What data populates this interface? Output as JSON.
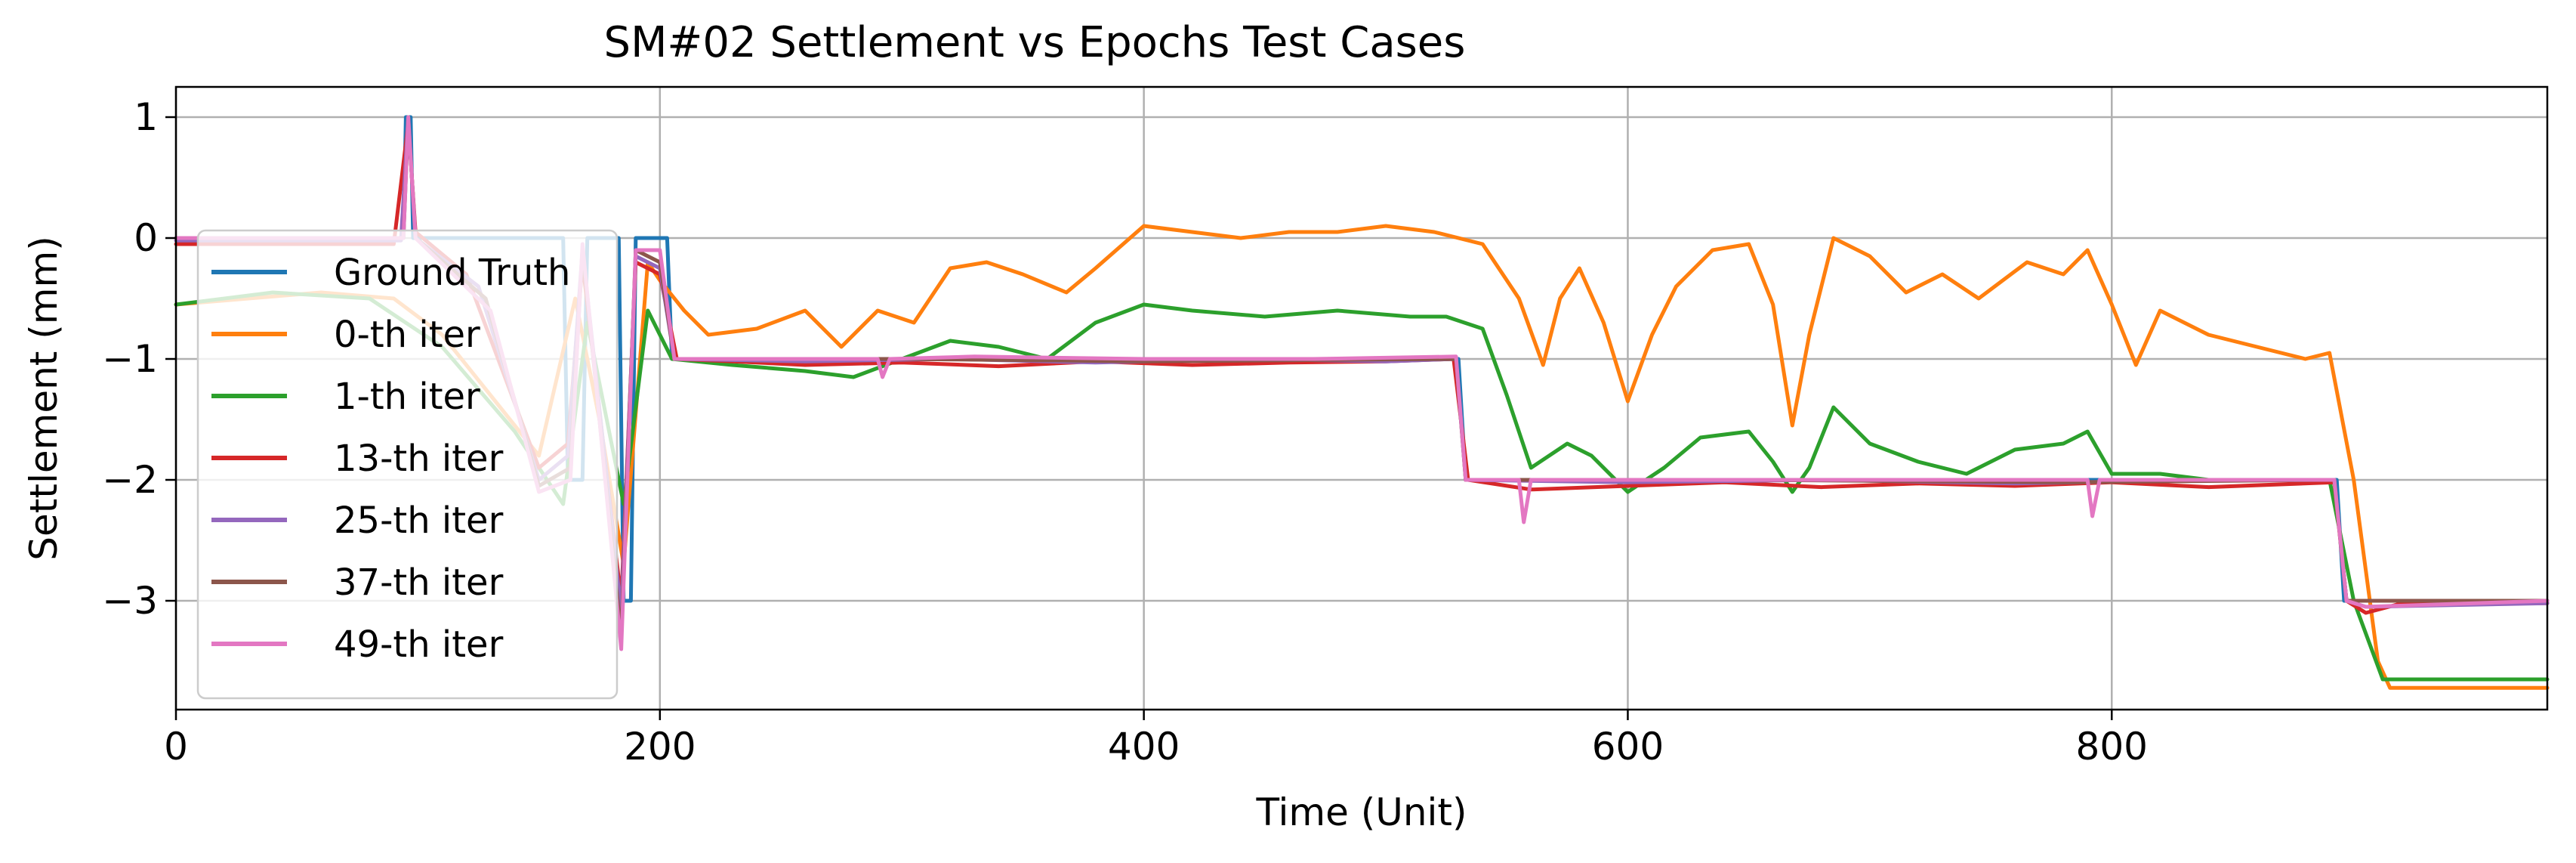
{
  "chart_data": {
    "type": "line",
    "title": "SM#02 Settlement vs Epochs Test Cases",
    "xlabel": "Time (Unit)",
    "ylabel": "Settlement (mm)",
    "xlim": [
      0,
      980
    ],
    "ylim": [
      -3.9,
      1.25
    ],
    "xticks": [
      0,
      200,
      400,
      600,
      800
    ],
    "xtick_labels": [
      "0",
      "200",
      "400",
      "600",
      "800"
    ],
    "yticks": [
      1,
      0,
      -1,
      -2,
      -3
    ],
    "ytick_labels": [
      "1",
      "0",
      "−1",
      "−2",
      "−3"
    ],
    "grid": true,
    "legend_position": "upper left",
    "series": [
      {
        "name": "Ground Truth",
        "color": "#1f77b4",
        "points": [
          [
            0,
            0
          ],
          [
            94,
            0
          ],
          [
            95,
            1
          ],
          [
            97,
            1
          ],
          [
            98,
            0
          ],
          [
            160,
            0
          ],
          [
            162,
            -2
          ],
          [
            168,
            -2
          ],
          [
            170,
            0
          ],
          [
            183,
            0
          ],
          [
            185,
            -3
          ],
          [
            188,
            -3
          ],
          [
            190,
            0
          ],
          [
            203,
            0
          ],
          [
            205,
            -1
          ],
          [
            530,
            -1
          ],
          [
            533,
            -2
          ],
          [
            893,
            -2
          ],
          [
            896,
            -3
          ],
          [
            980,
            -3
          ]
        ]
      },
      {
        "name": "0-th iter",
        "color": "#ff7f0e",
        "points": [
          [
            0,
            -0.55
          ],
          [
            30,
            -0.5
          ],
          [
            60,
            -0.45
          ],
          [
            90,
            -0.5
          ],
          [
            110,
            -0.8
          ],
          [
            130,
            -1.3
          ],
          [
            150,
            -1.8
          ],
          [
            165,
            -0.5
          ],
          [
            175,
            -1.5
          ],
          [
            185,
            -2.7
          ],
          [
            195,
            -0.2
          ],
          [
            200,
            -0.35
          ],
          [
            210,
            -0.6
          ],
          [
            220,
            -0.8
          ],
          [
            240,
            -0.75
          ],
          [
            260,
            -0.6
          ],
          [
            275,
            -0.9
          ],
          [
            290,
            -0.6
          ],
          [
            305,
            -0.7
          ],
          [
            320,
            -0.25
          ],
          [
            335,
            -0.2
          ],
          [
            350,
            -0.3
          ],
          [
            368,
            -0.45
          ],
          [
            380,
            -0.25
          ],
          [
            400,
            0.1
          ],
          [
            420,
            0.05
          ],
          [
            440,
            0
          ],
          [
            460,
            0.05
          ],
          [
            480,
            0.05
          ],
          [
            500,
            0.1
          ],
          [
            520,
            0.05
          ],
          [
            540,
            -0.05
          ],
          [
            555,
            -0.5
          ],
          [
            565,
            -1.05
          ],
          [
            572,
            -0.5
          ],
          [
            580,
            -0.25
          ],
          [
            590,
            -0.7
          ],
          [
            600,
            -1.35
          ],
          [
            610,
            -0.8
          ],
          [
            620,
            -0.4
          ],
          [
            635,
            -0.1
          ],
          [
            650,
            -0.05
          ],
          [
            660,
            -0.55
          ],
          [
            668,
            -1.55
          ],
          [
            675,
            -0.8
          ],
          [
            685,
            0
          ],
          [
            700,
            -0.15
          ],
          [
            715,
            -0.45
          ],
          [
            730,
            -0.3
          ],
          [
            745,
            -0.5
          ],
          [
            765,
            -0.2
          ],
          [
            780,
            -0.3
          ],
          [
            790,
            -0.1
          ],
          [
            800,
            -0.55
          ],
          [
            810,
            -1.05
          ],
          [
            820,
            -0.6
          ],
          [
            840,
            -0.8
          ],
          [
            860,
            -0.9
          ],
          [
            880,
            -1.0
          ],
          [
            890,
            -0.95
          ],
          [
            900,
            -2.0
          ],
          [
            910,
            -3.5
          ],
          [
            915,
            -3.72
          ],
          [
            980,
            -3.72
          ]
        ]
      },
      {
        "name": "1-th iter",
        "color": "#2ca02c",
        "points": [
          [
            0,
            -0.55
          ],
          [
            40,
            -0.45
          ],
          [
            80,
            -0.5
          ],
          [
            110,
            -0.9
          ],
          [
            140,
            -1.6
          ],
          [
            160,
            -2.2
          ],
          [
            170,
            -0.7
          ],
          [
            185,
            -2.2
          ],
          [
            195,
            -0.6
          ],
          [
            205,
            -1.0
          ],
          [
            230,
            -1.05
          ],
          [
            260,
            -1.1
          ],
          [
            280,
            -1.15
          ],
          [
            300,
            -1.0
          ],
          [
            320,
            -0.85
          ],
          [
            340,
            -0.9
          ],
          [
            360,
            -1.0
          ],
          [
            380,
            -0.7
          ],
          [
            400,
            -0.55
          ],
          [
            420,
            -0.6
          ],
          [
            450,
            -0.65
          ],
          [
            480,
            -0.6
          ],
          [
            510,
            -0.65
          ],
          [
            525,
            -0.65
          ],
          [
            540,
            -0.75
          ],
          [
            550,
            -1.3
          ],
          [
            560,
            -1.9
          ],
          [
            575,
            -1.7
          ],
          [
            585,
            -1.8
          ],
          [
            600,
            -2.1
          ],
          [
            615,
            -1.9
          ],
          [
            630,
            -1.65
          ],
          [
            650,
            -1.6
          ],
          [
            660,
            -1.85
          ],
          [
            668,
            -2.1
          ],
          [
            675,
            -1.9
          ],
          [
            685,
            -1.4
          ],
          [
            700,
            -1.7
          ],
          [
            720,
            -1.85
          ],
          [
            740,
            -1.95
          ],
          [
            760,
            -1.75
          ],
          [
            780,
            -1.7
          ],
          [
            790,
            -1.6
          ],
          [
            800,
            -1.95
          ],
          [
            820,
            -1.95
          ],
          [
            840,
            -2.0
          ],
          [
            890,
            -2.0
          ],
          [
            900,
            -3.0
          ],
          [
            912,
            -3.65
          ],
          [
            980,
            -3.65
          ]
        ]
      },
      {
        "name": "13-th iter",
        "color": "#d62728",
        "points": [
          [
            0,
            -0.05
          ],
          [
            90,
            -0.05
          ],
          [
            96,
            0.95
          ],
          [
            99,
            0.05
          ],
          [
            120,
            -0.3
          ],
          [
            150,
            -1.9
          ],
          [
            162,
            -1.7
          ],
          [
            168,
            -0.2
          ],
          [
            184,
            -3.0
          ],
          [
            190,
            -0.2
          ],
          [
            200,
            -0.3
          ],
          [
            207,
            -1.0
          ],
          [
            230,
            -1.02
          ],
          [
            260,
            -1.05
          ],
          [
            300,
            -1.03
          ],
          [
            340,
            -1.06
          ],
          [
            380,
            -1.02
          ],
          [
            420,
            -1.05
          ],
          [
            460,
            -1.03
          ],
          [
            500,
            -1.02
          ],
          [
            528,
            -1.0
          ],
          [
            534,
            -2.0
          ],
          [
            560,
            -2.08
          ],
          [
            600,
            -2.05
          ],
          [
            640,
            -2.02
          ],
          [
            680,
            -2.06
          ],
          [
            720,
            -2.03
          ],
          [
            760,
            -2.05
          ],
          [
            800,
            -2.02
          ],
          [
            840,
            -2.06
          ],
          [
            892,
            -2.02
          ],
          [
            897,
            -3.0
          ],
          [
            905,
            -3.1
          ],
          [
            920,
            -3.02
          ],
          [
            980,
            -3.02
          ]
        ]
      },
      {
        "name": "25-th iter",
        "color": "#9467bd",
        "points": [
          [
            0,
            -0.02
          ],
          [
            93,
            -0.02
          ],
          [
            96,
            1.0
          ],
          [
            99,
            0.0
          ],
          [
            125,
            -0.4
          ],
          [
            150,
            -2.0
          ],
          [
            162,
            -1.8
          ],
          [
            168,
            -0.1
          ],
          [
            184,
            -3.1
          ],
          [
            190,
            -0.15
          ],
          [
            200,
            -0.25
          ],
          [
            206,
            -1.0
          ],
          [
            260,
            -1.02
          ],
          [
            320,
            -1.0
          ],
          [
            380,
            -1.03
          ],
          [
            440,
            -1.0
          ],
          [
            500,
            -1.02
          ],
          [
            529,
            -1.0
          ],
          [
            533,
            -2.0
          ],
          [
            600,
            -2.02
          ],
          [
            680,
            -2.0
          ],
          [
            760,
            -2.03
          ],
          [
            840,
            -2.0
          ],
          [
            892,
            -2.0
          ],
          [
            897,
            -3.0
          ],
          [
            905,
            -3.05
          ],
          [
            980,
            -3.02
          ]
        ]
      },
      {
        "name": "37-th iter",
        "color": "#8c564b",
        "points": [
          [
            0,
            0
          ],
          [
            94,
            0
          ],
          [
            96,
            1.0
          ],
          [
            99,
            0.0
          ],
          [
            128,
            -0.5
          ],
          [
            150,
            -2.05
          ],
          [
            163,
            -1.9
          ],
          [
            168,
            -0.1
          ],
          [
            184,
            -3.3
          ],
          [
            190,
            -0.1
          ],
          [
            200,
            -0.2
          ],
          [
            206,
            -1.0
          ],
          [
            300,
            -1.0
          ],
          [
            400,
            -1.02
          ],
          [
            529,
            -1.0
          ],
          [
            533,
            -2.0
          ],
          [
            650,
            -2.0
          ],
          [
            780,
            -2.02
          ],
          [
            892,
            -2.0
          ],
          [
            897,
            -3.0
          ],
          [
            980,
            -3.0
          ]
        ]
      },
      {
        "name": "49-th iter",
        "color": "#e377c2",
        "points": [
          [
            0,
            0
          ],
          [
            94,
            0
          ],
          [
            96,
            1.0
          ],
          [
            99,
            0.0
          ],
          [
            130,
            -0.6
          ],
          [
            150,
            -2.1
          ],
          [
            163,
            -2.0
          ],
          [
            168,
            -0.05
          ],
          [
            175,
            -1.5
          ],
          [
            184,
            -3.4
          ],
          [
            190,
            -0.1
          ],
          [
            200,
            -0.1
          ],
          [
            206,
            -1.0
          ],
          [
            290,
            -1.0
          ],
          [
            292,
            -1.15
          ],
          [
            295,
            -1.0
          ],
          [
            330,
            -0.98
          ],
          [
            400,
            -1.0
          ],
          [
            470,
            -1.0
          ],
          [
            529,
            -0.98
          ],
          [
            533,
            -2.0
          ],
          [
            555,
            -2.0
          ],
          [
            557,
            -2.35
          ],
          [
            560,
            -2.0
          ],
          [
            640,
            -2.0
          ],
          [
            700,
            -2.0
          ],
          [
            790,
            -2.0
          ],
          [
            792,
            -2.3
          ],
          [
            795,
            -2.0
          ],
          [
            892,
            -2.0
          ],
          [
            897,
            -3.0
          ],
          [
            905,
            -3.05
          ],
          [
            980,
            -3.0
          ]
        ]
      }
    ]
  }
}
